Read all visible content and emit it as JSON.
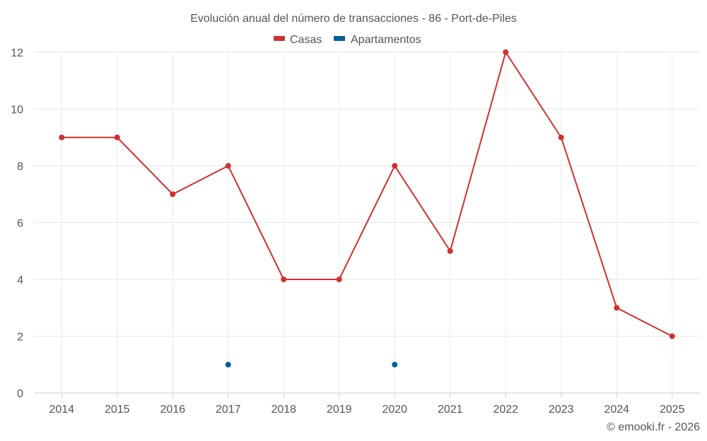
{
  "chart_data": {
    "type": "line",
    "title": "Evolución anual del número de transacciones - 86 - Port-de-Piles",
    "categories": [
      "2014",
      "2015",
      "2016",
      "2017",
      "2018",
      "2019",
      "2020",
      "2021",
      "2022",
      "2023",
      "2024",
      "2025"
    ],
    "series": [
      {
        "name": "Casas",
        "color": "#d32f2f",
        "values": [
          9,
          9,
          7,
          8,
          4,
          4,
          8,
          5,
          12,
          9,
          3,
          2
        ]
      },
      {
        "name": "Apartamentos",
        "color": "#005f99",
        "values": [
          null,
          null,
          null,
          1,
          null,
          null,
          1,
          null,
          null,
          null,
          null,
          null
        ]
      }
    ],
    "yticks": [
      "0",
      "2",
      "4",
      "6",
      "8",
      "10",
      "12"
    ],
    "ylim": [
      0,
      12
    ],
    "grid": true,
    "legend_position": "top-center",
    "credit": "© emooki.fr - 2026"
  }
}
